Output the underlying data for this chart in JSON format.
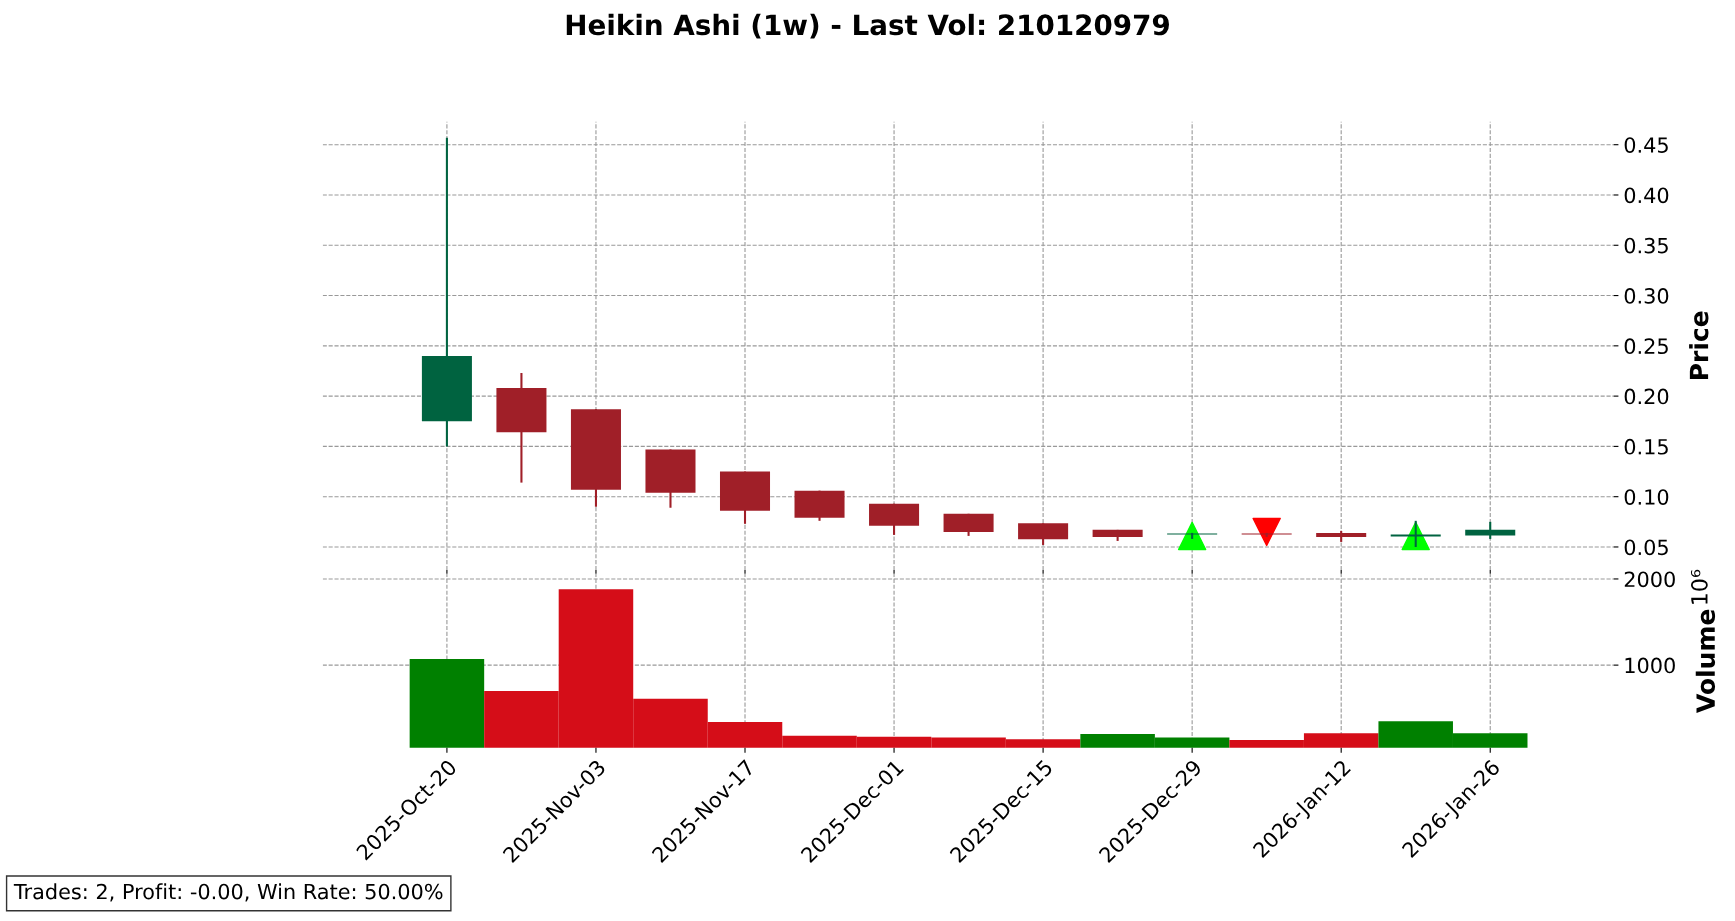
{
  "chart_data": [
    {
      "type": "candlestick",
      "title": "Heikin Ashi (1w) - Last Vol: 210120979",
      "ylabel": "Price",
      "x": [
        "2025-10-20",
        "2025-10-27",
        "2025-11-03",
        "2025-11-10",
        "2025-11-17",
        "2025-11-24",
        "2025-12-01",
        "2025-12-08",
        "2025-12-15",
        "2025-12-22",
        "2025-12-29",
        "2026-01-05",
        "2026-01-12",
        "2026-01-19",
        "2026-01-26"
      ],
      "ohlc": [
        [
          0.175,
          0.457,
          0.15,
          0.24
        ],
        [
          0.208,
          0.223,
          0.114,
          0.164
        ],
        [
          0.187,
          0.187,
          0.09,
          0.107
        ],
        [
          0.147,
          0.147,
          0.089,
          0.104
        ],
        [
          0.125,
          0.125,
          0.073,
          0.086
        ],
        [
          0.106,
          0.106,
          0.076,
          0.079
        ],
        [
          0.093,
          0.093,
          0.062,
          0.071
        ],
        [
          0.083,
          0.083,
          0.061,
          0.065
        ],
        [
          0.0735,
          0.0735,
          0.052,
          0.0576
        ],
        [
          0.067,
          0.067,
          0.056,
          0.06
        ],
        [
          0.0625,
          0.064,
          0.058,
          0.0635
        ],
        [
          0.0635,
          0.064,
          0.06,
          0.0625
        ],
        [
          0.064,
          0.066,
          0.055,
          0.06
        ],
        [
          0.0605,
          0.076,
          0.05,
          0.0625
        ],
        [
          0.0615,
          0.075,
          0.058,
          0.067
        ]
      ],
      "colors": [
        "#006340",
        "#a01f28",
        "#a01f28",
        "#a01f28",
        "#a01f28",
        "#a01f28",
        "#a01f28",
        "#a01f28",
        "#a01f28",
        "#a01f28",
        "#006340",
        "#a01f28",
        "#a01f28",
        "#006340",
        "#006340"
      ],
      "series": [
        {
          "type": "scatter",
          "marker": "triangle",
          "color": "#00ff00",
          "x": [
            "2025-12-29",
            "2026-01-19"
          ],
          "values": [
            0.061,
            0.061
          ]
        },
        {
          "type": "scatter",
          "marker": "triangle_down",
          "color": "#ff0000",
          "x": [
            "2026-01-05"
          ],
          "values": [
            0.065
          ]
        }
      ],
      "xlim": [
        "2025-10-08T08:00",
        "2026-02-06T14:00"
      ],
      "ylim": [
        0.027,
        0.473
      ],
      "yticks": [
        {
          "value": 0.05,
          "label": "0.05"
        },
        {
          "value": 0.1,
          "label": "0.10"
        },
        {
          "value": 0.15,
          "label": "0.15"
        },
        {
          "value": 0.2,
          "label": "0.20"
        },
        {
          "value": 0.25,
          "label": "0.25"
        },
        {
          "value": 0.3,
          "label": "0.30"
        },
        {
          "value": 0.35,
          "label": "0.35"
        },
        {
          "value": 0.4,
          "label": "0.40"
        },
        {
          "value": 0.45,
          "label": "0.45"
        }
      ],
      "xticks": [
        {
          "value": "2025-10-20",
          "label": null
        },
        {
          "value": "2025-11-03",
          "label": null
        },
        {
          "value": "2025-11-17",
          "label": null
        },
        {
          "value": "2025-12-01",
          "label": null
        },
        {
          "value": "2025-12-15",
          "label": null
        },
        {
          "value": "2025-12-29",
          "label": null
        },
        {
          "value": "2026-01-12",
          "label": null
        },
        {
          "value": "2026-01-26",
          "label": null
        }
      ],
      "tick_labels": "y",
      "grid": true
    },
    {
      "type": "bar",
      "ylabel": "Volume",
      "annotations": [
        "10⁶",
        "Trades: 2, Profit: -0.00, Win Rate: 50.00%"
      ],
      "x": [
        "2025-10-20",
        "2025-10-27",
        "2025-11-03",
        "2025-11-10",
        "2025-11-17",
        "2025-11-24",
        "2025-12-01",
        "2025-12-08",
        "2025-12-15",
        "2025-12-22",
        "2025-12-29",
        "2026-01-05",
        "2026-01-12",
        "2026-01-19",
        "2026-01-26"
      ],
      "values": [
        1070,
        700,
        1880,
        610,
        340,
        180,
        170,
        160,
        140,
        200,
        160,
        130,
        210,
        350,
        210
      ],
      "colors": [
        "#008000",
        "#d50d18",
        "#d50d18",
        "#d50d18",
        "#d50d18",
        "#d50d18",
        "#d50d18",
        "#d50d18",
        "#d50d18",
        "#008000",
        "#008000",
        "#d50d18",
        "#d50d18",
        "#008000",
        "#008000"
      ],
      "xlim": [
        "2025-10-08T08:00",
        "2026-02-06T14:00"
      ],
      "ylim": [
        40,
        2060
      ],
      "yticks": [
        1000,
        2000
      ],
      "xticks": [
        {
          "value": "2025-10-20",
          "label": "2025-Oct-20"
        },
        {
          "value": "2025-11-03",
          "label": "2025-Nov-03"
        },
        {
          "value": "2025-11-17",
          "label": "2025-Nov-17"
        },
        {
          "value": "2025-12-01",
          "label": "2025-Dec-01"
        },
        {
          "value": "2025-12-15",
          "label": "2025-Dec-15"
        },
        {
          "value": "2025-12-29",
          "label": "2025-Dec-29"
        },
        {
          "value": "2026-01-12",
          "label": "2026-Jan-12"
        },
        {
          "value": "2026-01-26",
          "label": "2026-Jan-26"
        }
      ],
      "grid": true
    }
  ]
}
